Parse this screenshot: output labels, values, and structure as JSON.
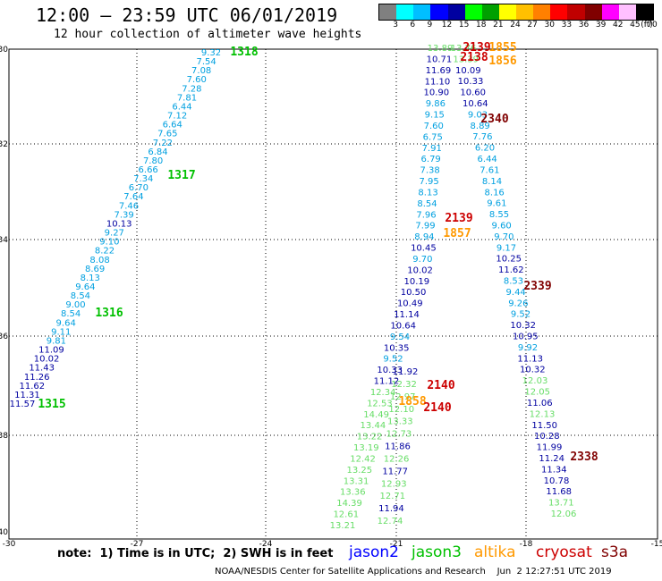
{
  "header": {
    "title": "12:00 – 23:59 UTC 06/01/2019",
    "subtitle": "12 hour collection of altimeter wave heights"
  },
  "legend": {
    "colors": [
      "#808080",
      "#00ffff",
      "#00bfff",
      "#0000ff",
      "#0000a0",
      "#00ff00",
      "#00a000",
      "#ffff00",
      "#ffc000",
      "#ff8000",
      "#ff0000",
      "#c00000",
      "#800000",
      "#ff00ff",
      "#ffc0ff",
      "#000000"
    ],
    "labels": [
      "3",
      "6",
      "9",
      "12",
      "15",
      "18",
      "21",
      "24",
      "27",
      "30",
      "33",
      "36",
      "39",
      "42",
      "45",
      "70",
      "(ft)"
    ]
  },
  "axes": {
    "y_labels": [
      "-30",
      "-32",
      "-34",
      "-36",
      "-38",
      "-40"
    ],
    "x_labels": [
      "-30",
      "-27",
      "-24",
      "-21",
      "-18",
      "-15"
    ]
  },
  "colors": {
    "jason2": "#0000ff",
    "jason3": "#00c000",
    "altika": "#ff9900",
    "cryosat": "#cc0000",
    "s3a": "#800000",
    "swh_cyan": "#00a0e0",
    "swh_navy": "#0000a0",
    "swh_green": "#66dd66"
  },
  "tracks": [
    {
      "sat": "jason3",
      "label": "1318"
    },
    {
      "sat": "jason3",
      "label": "1317"
    },
    {
      "sat": "jason3",
      "label": "1316"
    },
    {
      "sat": "jason3",
      "label": "1315"
    },
    {
      "sat": "cryosat",
      "label": "2139"
    },
    {
      "sat": "altika",
      "label": "1855"
    },
    {
      "sat": "cryosat",
      "label": "2138"
    },
    {
      "sat": "altika",
      "label": "1856"
    },
    {
      "sat": "s3a",
      "label": "2340"
    },
    {
      "sat": "cryosat",
      "label": "2139"
    },
    {
      "sat": "altika",
      "label": "1857"
    },
    {
      "sat": "s3a",
      "label": "2339"
    },
    {
      "sat": "cryosat",
      "label": "2140"
    },
    {
      "sat": "altika",
      "label": "1858"
    },
    {
      "sat": "cryosat",
      "label": "2140"
    },
    {
      "sat": "s3a",
      "label": "2338"
    }
  ],
  "track_a": [
    "9.32",
    "7.54",
    "7.08",
    "7.60",
    "7.28",
    "7.81",
    "6.44",
    "7.12",
    "6.64",
    "7.65",
    "7.22",
    "6.84",
    "7.80",
    "6.66",
    "7.34",
    "6.70",
    "7.64",
    "7.46",
    "7.39",
    "10.13",
    "9.27",
    "9.10",
    "8.22",
    "8.08",
    "8.69",
    "8.13",
    "9.64",
    "8.54",
    "9.00",
    "8.54",
    "9.64",
    "9.11",
    "9.81",
    "11.09",
    "10.02",
    "11.43",
    "11.26",
    "11.62",
    "11.31",
    "11.57"
  ],
  "track_b": [
    "13.89",
    "10.71",
    "11.69",
    "11.10",
    "10.90",
    "9.86",
    "9.15",
    "7.60",
    "6.75",
    "7.91",
    "6.79",
    "7.38",
    "7.95",
    "8.13",
    "8.54",
    "7.96",
    "7.99",
    "8.94",
    "10.45",
    "9.70",
    "10.02",
    "10.19",
    "10.50",
    "10.49",
    "11.14",
    "10.64",
    "9.54",
    "10.35",
    "9.52",
    "10.33",
    "11.12",
    "12.34",
    "12.53",
    "14.49",
    "13.44",
    "13.22",
    "13.19",
    "12.42",
    "13.25",
    "13.31",
    "13.36",
    "14.39",
    "12.61",
    "13.21"
  ],
  "track_c": [
    "13.76",
    "13.39",
    "10.09",
    "10.33",
    "10.60",
    "10.64",
    "9.03",
    "8.89",
    "7.76",
    "6.20",
    "6.44",
    "7.61",
    "8.14",
    "8.16",
    "9.61",
    "8.55",
    "9.60",
    "9.70",
    "9.17",
    "10.25",
    "11.62",
    "8.53",
    "9.44",
    "9.26",
    "9.52",
    "10.32",
    "10.95",
    "9.92",
    "11.13",
    "10.32",
    "12.03",
    "12.05",
    "11.06",
    "12.13",
    "11.50",
    "10.28",
    "11.99",
    "11.24",
    "11.34",
    "10.78",
    "11.68",
    "13.71",
    "12.06"
  ],
  "track_d": [
    "11.92",
    "12.32",
    "12.97",
    "12.10",
    "13.33",
    "12.73",
    "11.86",
    "12.26",
    "11.77",
    "12.93",
    "12.71",
    "11.94",
    "12.74"
  ],
  "note": "note:  1) Time is in UTC;  2) SWH is in feet",
  "sat_names": {
    "jason2": "jason2",
    "jason3": "jason3",
    "altika": "altika",
    "cryosat": "cryosat",
    "s3a": "s3a"
  },
  "credit": "NOAA/NESDIS Center for Satellite Applications and Research    Jun  2 12:27:51 UTC 2019"
}
